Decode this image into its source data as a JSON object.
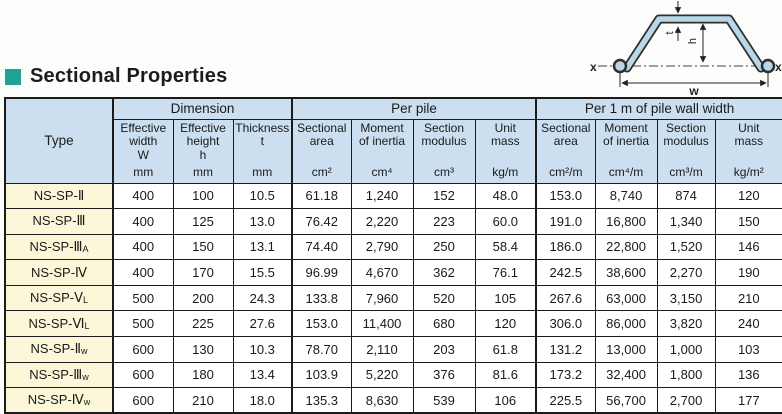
{
  "page": {
    "title": "Sectional Properties",
    "accent_color": "#1ba394",
    "header_bg": "#cbdff0",
    "type_col_bg": "#fcf7d8"
  },
  "diagram": {
    "pile_fill": "#b9d7e9",
    "labels": {
      "x_left": "x",
      "x_right": "x",
      "width": "w",
      "height": "h",
      "thickness": "t"
    }
  },
  "table": {
    "type_header": "Type",
    "col_groups": [
      {
        "label": "Dimension"
      },
      {
        "label": "Per pile"
      },
      {
        "label": "Per 1 m of pile wall width"
      }
    ],
    "columns": [
      {
        "label": "Effective\nwidth",
        "symbol": "W",
        "unit": "mm"
      },
      {
        "label": "Effective\nheight",
        "symbol": "h",
        "unit": "mm"
      },
      {
        "label": "Thickness",
        "symbol": "t",
        "unit": "mm"
      },
      {
        "label": "Sectional\narea",
        "symbol": "",
        "unit": "cm²"
      },
      {
        "label": "Moment\nof inertia",
        "symbol": "",
        "unit": "cm⁴"
      },
      {
        "label": "Section\nmodulus",
        "symbol": "",
        "unit": "cm³"
      },
      {
        "label": "Unit\nmass",
        "symbol": "",
        "unit": "kg/m"
      },
      {
        "label": "Sectional\narea",
        "symbol": "",
        "unit": "cm²/m"
      },
      {
        "label": "Moment\nof inertia",
        "symbol": "",
        "unit": "cm⁴/m"
      },
      {
        "label": "Section\nmodulus",
        "symbol": "",
        "unit": "cm³/m"
      },
      {
        "label": "Unit\nmass",
        "symbol": "",
        "unit": "kg/m²"
      }
    ],
    "rows": [
      {
        "type": "NS-SP-Ⅱ",
        "type_sub": "",
        "values": [
          "400",
          "100",
          "10.5",
          "61.18",
          "1,240",
          "152",
          "48.0",
          "153.0",
          "8,740",
          "874",
          "120"
        ]
      },
      {
        "type": "NS-SP-Ⅲ",
        "type_sub": "",
        "values": [
          "400",
          "125",
          "13.0",
          "76.42",
          "2,220",
          "223",
          "60.0",
          "191.0",
          "16,800",
          "1,340",
          "150"
        ]
      },
      {
        "type": "NS-SP-Ⅲ",
        "type_sub": "A",
        "values": [
          "400",
          "150",
          "13.1",
          "74.40",
          "2,790",
          "250",
          "58.4",
          "186.0",
          "22,800",
          "1,520",
          "146"
        ]
      },
      {
        "type": "NS-SP-Ⅳ",
        "type_sub": "",
        "values": [
          "400",
          "170",
          "15.5",
          "96.99",
          "4,670",
          "362",
          "76.1",
          "242.5",
          "38,600",
          "2,270",
          "190"
        ]
      },
      {
        "type": "NS-SP-Ⅴ",
        "type_sub": "L",
        "values": [
          "500",
          "200",
          "24.3",
          "133.8",
          "7,960",
          "520",
          "105",
          "267.6",
          "63,000",
          "3,150",
          "210"
        ]
      },
      {
        "type": "NS-SP-Ⅵ",
        "type_sub": "L",
        "values": [
          "500",
          "225",
          "27.6",
          "153.0",
          "11,400",
          "680",
          "120",
          "306.0",
          "86,000",
          "3,820",
          "240"
        ]
      },
      {
        "type": "NS-SP-Ⅱ",
        "type_sub": "w",
        "values": [
          "600",
          "130",
          "10.3",
          "78.70",
          "2,110",
          "203",
          "61.8",
          "131.2",
          "13,000",
          "1,000",
          "103"
        ]
      },
      {
        "type": "NS-SP-Ⅲ",
        "type_sub": "w",
        "values": [
          "600",
          "180",
          "13.4",
          "103.9",
          "5,220",
          "376",
          "81.6",
          "173.2",
          "32,400",
          "1,800",
          "136"
        ]
      },
      {
        "type": "NS-SP-Ⅳ",
        "type_sub": "w",
        "values": [
          "600",
          "210",
          "18.0",
          "135.3",
          "8,630",
          "539",
          "106",
          "225.5",
          "56,700",
          "2,700",
          "177"
        ]
      }
    ]
  }
}
